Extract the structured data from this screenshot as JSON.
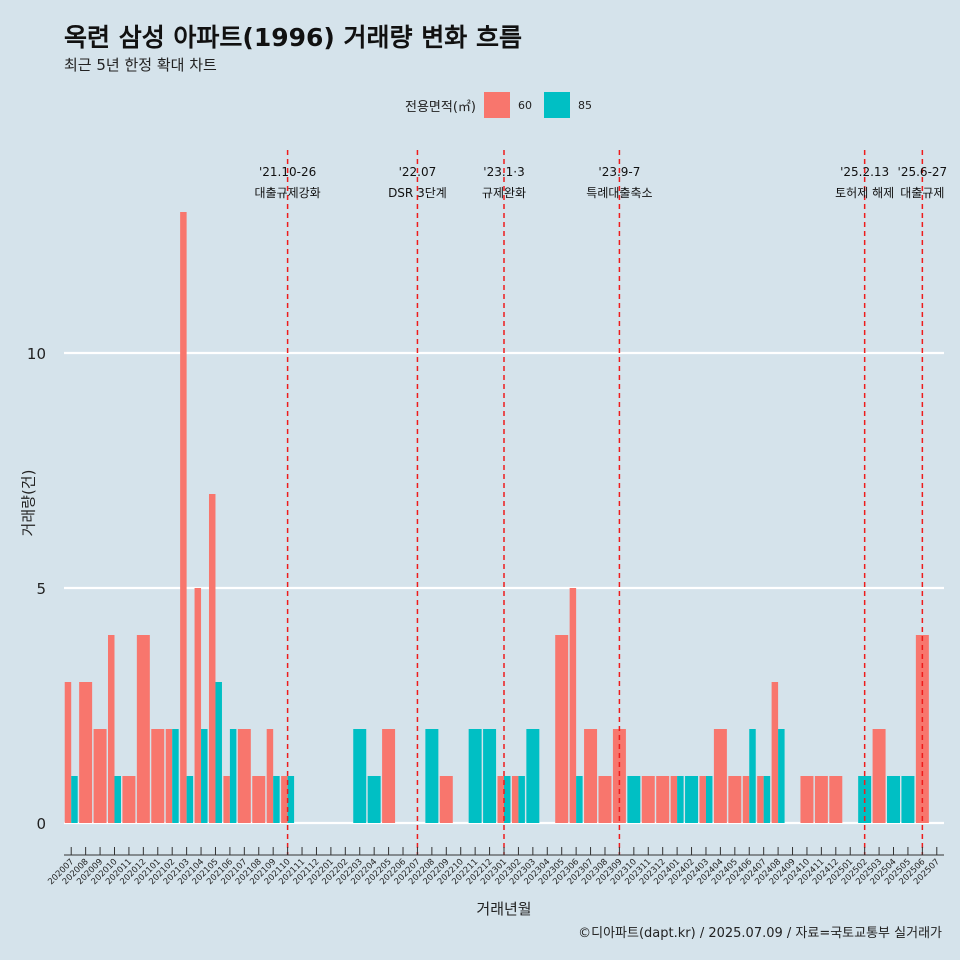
{
  "title": "옥련 삼성 아파트(1996) 거래량 변화 흐름",
  "subtitle": "최근 5년 한정 확대 차트",
  "legend": {
    "title": "전용면적(㎡)",
    "items": [
      {
        "label": "60",
        "color": "#f8766d"
      },
      {
        "label": "85",
        "color": "#00bfc4"
      }
    ]
  },
  "caption": "©디아파트(dapt.kr) / 2025.07.09 / 자료=국토교통부 실거래가",
  "chart_data": {
    "type": "bar",
    "xlabel": "거래년월",
    "ylabel": "거래량(건)",
    "ylim": [
      0,
      14
    ],
    "yticks": [
      0,
      5,
      10
    ],
    "grid": "horizontal major lines",
    "legend_position": "top",
    "categories": [
      "202007",
      "202008",
      "202009",
      "202010",
      "202011",
      "202012",
      "202101",
      "202102",
      "202103",
      "202104",
      "202105",
      "202106",
      "202107",
      "202108",
      "202109",
      "202110",
      "202111",
      "202112",
      "202201",
      "202202",
      "202203",
      "202204",
      "202205",
      "202206",
      "202207",
      "202208",
      "202209",
      "202210",
      "202211",
      "202212",
      "202301",
      "202302",
      "202303",
      "202304",
      "202305",
      "202306",
      "202307",
      "202308",
      "202309",
      "202310",
      "202311",
      "202312",
      "202401",
      "202402",
      "202403",
      "202404",
      "202405",
      "202406",
      "202407",
      "202408",
      "202409",
      "202410",
      "202411",
      "202412",
      "202501",
      "202502",
      "202503",
      "202504",
      "202505",
      "202506",
      "202507"
    ],
    "series": [
      {
        "name": "60",
        "color": "#f8766d",
        "values": [
          3,
          3,
          2,
          4,
          1,
          4,
          2,
          2,
          13,
          5,
          7,
          1,
          2,
          1,
          2,
          1,
          0,
          0,
          0,
          0,
          0,
          0,
          2,
          0,
          0,
          0,
          1,
          0,
          0,
          0,
          1,
          1,
          0,
          0,
          4,
          5,
          2,
          1,
          2,
          0,
          1,
          1,
          1,
          0,
          1,
          2,
          1,
          1,
          1,
          3,
          0,
          1,
          1,
          1,
          0,
          0,
          2,
          0,
          0,
          4,
          0
        ]
      },
      {
        "name": "85",
        "color": "#00bfc4",
        "values": [
          1,
          0,
          0,
          1,
          0,
          0,
          0,
          2,
          1,
          2,
          3,
          2,
          0,
          0,
          1,
          1,
          0,
          0,
          0,
          0,
          2,
          1,
          0,
          0,
          0,
          2,
          0,
          0,
          2,
          2,
          1,
          1,
          2,
          0,
          0,
          1,
          0,
          0,
          0,
          1,
          0,
          0,
          1,
          1,
          1,
          0,
          0,
          2,
          1,
          2,
          0,
          0,
          0,
          0,
          0,
          1,
          0,
          1,
          1,
          0,
          0
        ]
      }
    ],
    "annotations": [
      {
        "category": "202110",
        "date": "'21.10-26",
        "label": "대출규제강화"
      },
      {
        "category": "202207",
        "date": "'22.07",
        "label": "DSR 3단계"
      },
      {
        "category": "202301",
        "date": "'23.1·3",
        "label": "규제완화"
      },
      {
        "category": "202309",
        "date": "'23.9-7",
        "label": "특례대출축소"
      },
      {
        "category": "202502",
        "date": "'25.2.13",
        "label": "토허제 해제"
      },
      {
        "category": "202506",
        "date": "'25.6-27",
        "label": "대출규제"
      }
    ]
  }
}
